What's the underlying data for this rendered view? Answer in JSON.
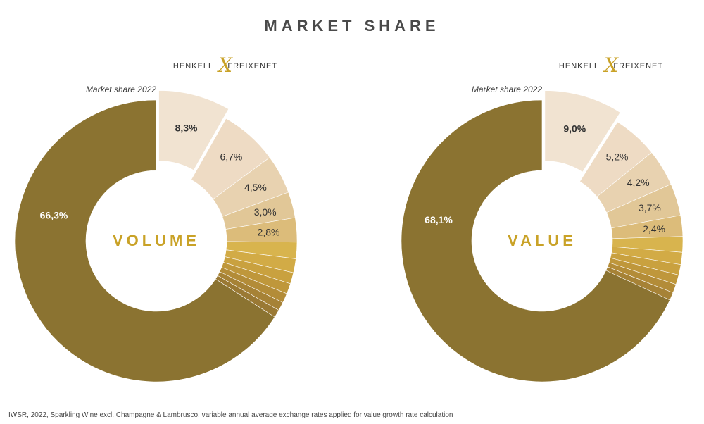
{
  "title": "MARKET SHARE",
  "brand": {
    "left_word": "HENKELL",
    "right_word": "FREIXENET",
    "mark": "X"
  },
  "colors": {
    "dominant": "#8b7331",
    "highlight": "#f1e3d1",
    "accent": "#c9a227"
  },
  "footnote": "IWSR, 2022, Sparkling Wine excl. Champagne & Lambrusco, variable annual average exchange rates applied for value growth rate calculation",
  "chart_data": [
    {
      "type": "pie",
      "center_label": "VOLUME",
      "caption": "Market share 2022",
      "highlighted_slice": 0,
      "slices": [
        {
          "value": 8.3,
          "label": "8,3%",
          "color": "#f1e3d1"
        },
        {
          "value": 6.7,
          "label": "6,7%",
          "color": "#eedbc4"
        },
        {
          "value": 4.5,
          "label": "4,5%",
          "color": "#e8d2b0"
        },
        {
          "value": 3.0,
          "label": "3,0%",
          "color": "#e1c797"
        },
        {
          "value": 2.8,
          "label": "2,8%",
          "color": "#dcbc7a"
        },
        {
          "value": 1.9,
          "label": "",
          "color": "#d8b44e"
        },
        {
          "value": 1.6,
          "label": "",
          "color": "#d2ab46"
        },
        {
          "value": 1.3,
          "label": "",
          "color": "#c9a13f"
        },
        {
          "value": 1.2,
          "label": "",
          "color": "#bf973b"
        },
        {
          "value": 1.1,
          "label": "",
          "color": "#b38c38"
        },
        {
          "value": 1.0,
          "label": "",
          "color": "#a68236"
        },
        {
          "value": 0.9,
          "label": "",
          "color": "#9a7934"
        },
        {
          "value": 66.3,
          "label": "66,3%",
          "color": "#8b7331"
        }
      ]
    },
    {
      "type": "pie",
      "center_label": "VALUE",
      "caption": "Market share 2022",
      "highlighted_slice": 0,
      "slices": [
        {
          "value": 9.0,
          "label": "9,0%",
          "color": "#f1e3d1"
        },
        {
          "value": 5.2,
          "label": "5,2%",
          "color": "#eedbc4"
        },
        {
          "value": 4.2,
          "label": "4,2%",
          "color": "#e8d2b0"
        },
        {
          "value": 3.7,
          "label": "3,7%",
          "color": "#e1c797"
        },
        {
          "value": 2.4,
          "label": "2,4%",
          "color": "#dcbc7a"
        },
        {
          "value": 1.8,
          "label": "",
          "color": "#d8b44e"
        },
        {
          "value": 1.4,
          "label": "",
          "color": "#d2ab46"
        },
        {
          "value": 1.2,
          "label": "",
          "color": "#c9a13f"
        },
        {
          "value": 1.1,
          "label": "",
          "color": "#bf973b"
        },
        {
          "value": 1.0,
          "label": "",
          "color": "#b38c38"
        },
        {
          "value": 0.9,
          "label": "",
          "color": "#a68236"
        },
        {
          "value": 68.1,
          "label": "68,1%",
          "color": "#8b7331"
        }
      ]
    }
  ]
}
